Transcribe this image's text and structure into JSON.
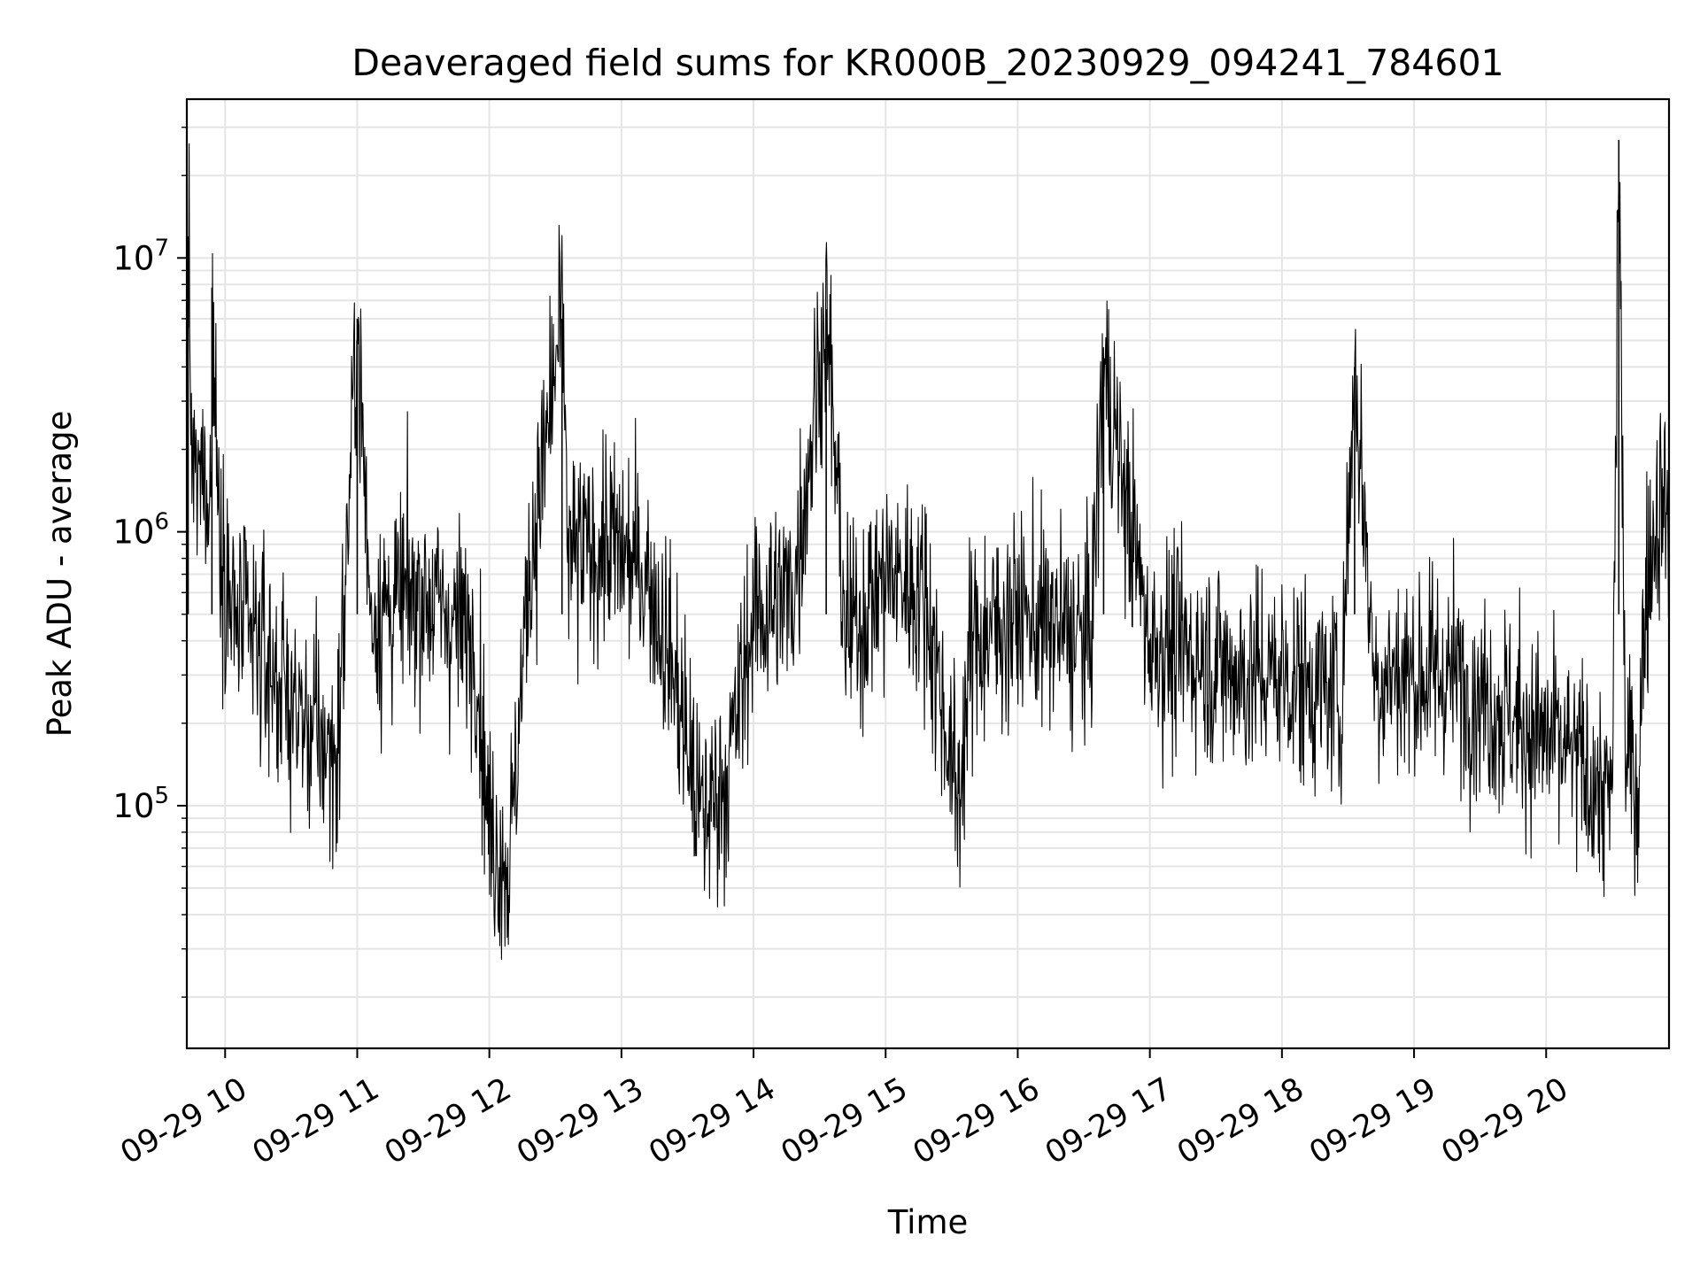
{
  "chart_data": {
    "type": "line",
    "title": "Deaveraged field sums for KR000B_20230929_094241_784601",
    "xlabel": "Time",
    "ylabel": "Peak ADU - average",
    "x_tick_labels": [
      "09-29 10",
      "09-29 11",
      "09-29 12",
      "09-29 13",
      "09-29 14",
      "09-29 15",
      "09-29 16",
      "09-29 17",
      "09-29 18",
      "09-29 19",
      "09-29 20"
    ],
    "x_tick_hours": [
      10,
      11,
      12,
      13,
      14,
      15,
      16,
      17,
      18,
      19,
      20
    ],
    "x_start": "2023-09-29 09:42:41",
    "x_end": "2023-09-29 20:55",
    "xlim_hours": [
      9.71,
      20.93
    ],
    "y_tick_labels": [
      {
        "base": "10",
        "exp": "5",
        "value": 100000
      },
      {
        "base": "10",
        "exp": "6",
        "value": 1000000
      },
      {
        "base": "10",
        "exp": "7",
        "value": 10000000
      }
    ],
    "y_scale": "log",
    "ylim": [
      13000,
      38000000
    ],
    "grid": true,
    "line_color": "#000000",
    "grid_color": "#e5e5e5",
    "anchor_points": [
      {
        "t": 9.71,
        "v": 400000
      },
      {
        "t": 9.72,
        "v": 12000000
      },
      {
        "t": 9.75,
        "v": 1500000
      },
      {
        "t": 9.9,
        "v": 1600000
      },
      {
        "t": 9.9,
        "v": 7800000
      },
      {
        "t": 9.95,
        "v": 1200000
      },
      {
        "t": 10.05,
        "v": 500000
      },
      {
        "t": 10.3,
        "v": 350000
      },
      {
        "t": 10.6,
        "v": 200000
      },
      {
        "t": 10.85,
        "v": 150000
      },
      {
        "t": 11.0,
        "v": 6000000
      },
      {
        "t": 11.1,
        "v": 500000
      },
      {
        "t": 11.5,
        "v": 600000
      },
      {
        "t": 11.9,
        "v": 400000
      },
      {
        "t": 12.0,
        "v": 80000
      },
      {
        "t": 12.15,
        "v": 60000
      },
      {
        "t": 12.3,
        "v": 700000
      },
      {
        "t": 12.55,
        "v": 6000000
      },
      {
        "t": 12.6,
        "v": 800000
      },
      {
        "t": 12.9,
        "v": 900000
      },
      {
        "t": 13.2,
        "v": 700000
      },
      {
        "t": 13.4,
        "v": 300000
      },
      {
        "t": 13.6,
        "v": 90000
      },
      {
        "t": 13.8,
        "v": 130000
      },
      {
        "t": 14.0,
        "v": 500000
      },
      {
        "t": 14.3,
        "v": 600000
      },
      {
        "t": 14.55,
        "v": 6500000
      },
      {
        "t": 14.7,
        "v": 400000
      },
      {
        "t": 15.0,
        "v": 700000
      },
      {
        "t": 15.3,
        "v": 600000
      },
      {
        "t": 15.55,
        "v": 100000
      },
      {
        "t": 15.65,
        "v": 400000
      },
      {
        "t": 16.0,
        "v": 500000
      },
      {
        "t": 16.55,
        "v": 400000
      },
      {
        "t": 16.65,
        "v": 4000000
      },
      {
        "t": 17.0,
        "v": 400000
      },
      {
        "t": 17.4,
        "v": 350000
      },
      {
        "t": 17.7,
        "v": 300000
      },
      {
        "t": 18.0,
        "v": 300000
      },
      {
        "t": 18.45,
        "v": 250000
      },
      {
        "t": 18.55,
        "v": 4000000
      },
      {
        "t": 18.7,
        "v": 300000
      },
      {
        "t": 19.0,
        "v": 300000
      },
      {
        "t": 19.3,
        "v": 300000
      },
      {
        "t": 19.8,
        "v": 200000
      },
      {
        "t": 20.2,
        "v": 150000
      },
      {
        "t": 20.5,
        "v": 100000
      },
      {
        "t": 20.55,
        "v": 27000000
      },
      {
        "t": 20.6,
        "v": 150000
      },
      {
        "t": 20.7,
        "v": 120000
      },
      {
        "t": 20.75,
        "v": 600000
      },
      {
        "t": 20.85,
        "v": 1300000
      },
      {
        "t": 20.93,
        "v": 1200000
      }
    ]
  }
}
